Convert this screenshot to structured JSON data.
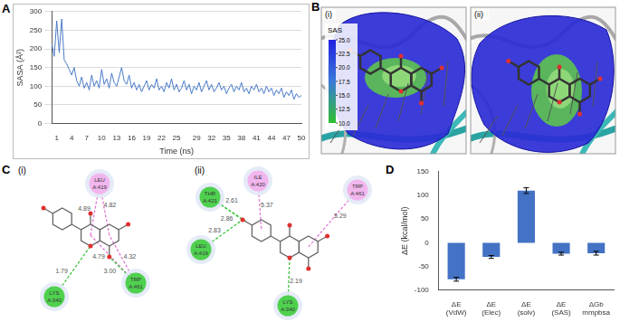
{
  "panel_labels": [
    "A",
    "B",
    "C",
    "D"
  ],
  "chart_data": [
    {
      "type": "line",
      "x_label": "Time (ns)",
      "y_label": "SASA (Å²)",
      "color": "#4a7bc8",
      "grid": true,
      "xlim": [
        0,
        50
      ],
      "xticks": [
        1,
        4,
        7,
        10,
        13,
        16,
        19,
        22,
        25,
        29,
        32,
        35,
        38,
        41,
        44,
        47,
        50
      ],
      "ylim": [
        0,
        300
      ],
      "yticks": [
        0,
        50,
        100,
        150,
        200,
        250,
        300
      ],
      "x": [
        0,
        0.5,
        1,
        1.5,
        2,
        2.5,
        3,
        3.5,
        4,
        4.5,
        5,
        5.5,
        6,
        6.5,
        7,
        7.5,
        8,
        8.5,
        9,
        9.5,
        10,
        10.5,
        11,
        11.5,
        12,
        12.5,
        13,
        13.5,
        14,
        14.5,
        15,
        15.5,
        16,
        16.5,
        17,
        17.5,
        18,
        18.5,
        19,
        19.5,
        20,
        20.5,
        21,
        21.5,
        22,
        22.5,
        23,
        23.5,
        24,
        24.5,
        25,
        25.5,
        26,
        26.5,
        27,
        27.5,
        28,
        28.5,
        29,
        29.5,
        30,
        30.5,
        31,
        31.5,
        32,
        32.5,
        33,
        33.5,
        34,
        34.5,
        35,
        35.5,
        36,
        36.5,
        37,
        37.5,
        38,
        38.5,
        39,
        39.5,
        40,
        40.5,
        41,
        41.5,
        42,
        42.5,
        43,
        43.5,
        44,
        44.5,
        45,
        45.5,
        46,
        46.5,
        47,
        47.5,
        48,
        48.5,
        49,
        49.5,
        50
      ],
      "values": [
        215,
        180,
        275,
        190,
        280,
        170,
        160,
        145,
        130,
        150,
        115,
        100,
        125,
        95,
        110,
        90,
        130,
        100,
        115,
        95,
        145,
        105,
        120,
        95,
        135,
        110,
        100,
        125,
        150,
        115,
        105,
        130,
        95,
        110,
        90,
        105,
        85,
        100,
        115,
        90,
        105,
        95,
        120,
        90,
        100,
        85,
        110,
        95,
        120,
        90,
        105,
        85,
        95,
        115,
        90,
        105,
        80,
        100,
        90,
        110,
        85,
        100,
        115,
        90,
        105,
        85,
        95,
        110,
        90,
        100,
        80,
        95,
        105,
        85,
        100,
        90,
        110,
        85,
        95,
        80,
        100,
        90,
        105,
        85,
        95,
        80,
        100,
        85,
        95,
        75,
        90,
        80,
        95,
        70,
        85,
        75,
        90,
        65,
        80,
        70,
        75
      ]
    },
    {
      "type": "bar",
      "y_label": "ΔE (kcal/mol)",
      "color": "#4472c4",
      "grid": false,
      "categories": [
        "ΔE (VdW)",
        "ΔE (Elec)",
        "ΔE (solv)",
        "ΔE (SAS)",
        "ΔGb mmpbsa"
      ],
      "values": [
        -77,
        -30,
        110,
        -23,
        -22
      ],
      "errors": [
        4,
        3,
        6,
        3,
        4
      ],
      "ylim": [
        -100,
        150
      ],
      "yticks": [
        -100,
        -50,
        0,
        50,
        100,
        150
      ]
    }
  ],
  "panel_b": {
    "images": [
      {
        "label": "(i)"
      },
      {
        "label": "(ii)"
      }
    ],
    "colorbar": {
      "label": "SAS",
      "range": [
        10,
        25
      ],
      "ticks": [
        {
          "value": 25,
          "label": "25.0"
        },
        {
          "value": 22.5,
          "label": "22.5"
        },
        {
          "value": 20,
          "label": "20.0"
        },
        {
          "value": 17.5,
          "label": "17.5"
        },
        {
          "value": 15,
          "label": "15.0"
        },
        {
          "value": 12.5,
          "label": "12.5"
        },
        {
          "value": 10,
          "label": "10.0"
        }
      ]
    }
  },
  "panel_c": {
    "diagrams": [
      {
        "label": "(i)",
        "residues": [
          {
            "name": "LEU",
            "id": "A:419",
            "kind": "pi"
          },
          {
            "name": "TRP",
            "id": "A:461",
            "kind": "hbond"
          },
          {
            "name": "LYS",
            "id": "A:340",
            "kind": "hbond"
          }
        ],
        "contacts": [
          {
            "residue": 0,
            "distance": "4.82",
            "kind": "pi"
          },
          {
            "residue": 0,
            "distance": "4.89",
            "kind": "pi"
          },
          {
            "residue": 1,
            "distance": "4.79",
            "kind": "pi"
          },
          {
            "residue": 1,
            "distance": "4.32",
            "kind": "pi"
          },
          {
            "residue": 1,
            "distance": "3.00",
            "kind": "hbond"
          },
          {
            "residue": 2,
            "distance": "1.79",
            "kind": "hbond"
          }
        ]
      },
      {
        "label": "(ii)",
        "residues": [
          {
            "name": "ILE",
            "id": "A:420",
            "kind": "pi"
          },
          {
            "name": "TRP",
            "id": "A:461",
            "kind": "pi"
          },
          {
            "name": "THR",
            "id": "A:421",
            "kind": "hbond"
          },
          {
            "name": "LEU",
            "id": "A:419",
            "kind": "hbond"
          },
          {
            "name": "LYS",
            "id": "A:340",
            "kind": "hbond"
          }
        ],
        "contacts": [
          {
            "residue": 0,
            "distance": "5.37",
            "kind": "pi"
          },
          {
            "residue": 1,
            "distance": "5.29",
            "kind": "pi"
          },
          {
            "residue": 2,
            "distance": "2.61",
            "kind": "hbond"
          },
          {
            "residue": 2,
            "distance": "2.86",
            "kind": "hbond"
          },
          {
            "residue": 3,
            "distance": "2.83",
            "kind": "hbond"
          },
          {
            "residue": 4,
            "distance": "2.19",
            "kind": "hbond"
          }
        ]
      }
    ]
  }
}
